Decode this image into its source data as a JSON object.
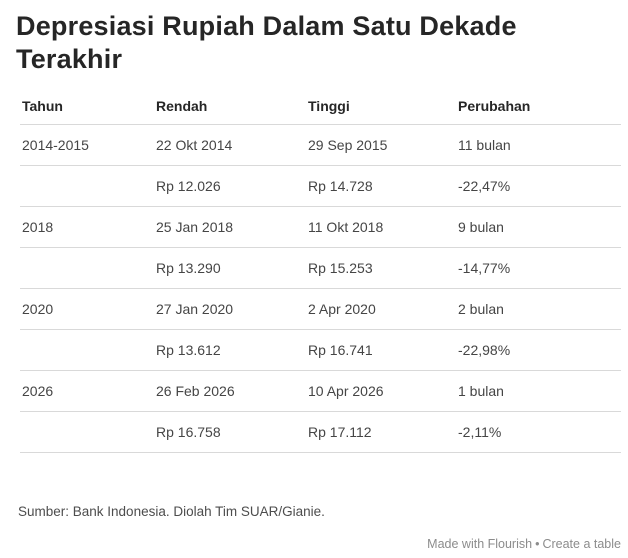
{
  "header": {
    "title": "Depresiasi Rupiah Dalam Satu Dekade Terakhir"
  },
  "chart_data": {
    "type": "table",
    "title": "Depresiasi Rupiah Dalam Satu Dekade Terakhir",
    "columns": [
      "Tahun",
      "Rendah",
      "Tinggi",
      "Perubahan"
    ],
    "rows": [
      {
        "tahun": "2014-2015",
        "rendah": "22 Okt 2014",
        "tinggi": "29 Sep 2015",
        "perubahan": "11 bulan"
      },
      {
        "tahun": "",
        "rendah": "Rp 12.026",
        "tinggi": "Rp 14.728",
        "perubahan": "-22,47%"
      },
      {
        "tahun": "2018",
        "rendah": "25 Jan 2018",
        "tinggi": "11 Okt 2018",
        "perubahan": "9 bulan"
      },
      {
        "tahun": "",
        "rendah": "Rp 13.290",
        "tinggi": "Rp 15.253",
        "perubahan": "-14,77%"
      },
      {
        "tahun": "2020",
        "rendah": "27 Jan 2020",
        "tinggi": "2 Apr 2020",
        "perubahan": "2 bulan"
      },
      {
        "tahun": "",
        "rendah": "Rp 13.612",
        "tinggi": "Rp 16.741",
        "perubahan": "-22,98%"
      },
      {
        "tahun": "2026",
        "rendah": "26 Feb 2026",
        "tinggi": "10 Apr 2026",
        "perubahan": "1 bulan"
      },
      {
        "tahun": "",
        "rendah": "Rp 16.758",
        "tinggi": "Rp 17.112",
        "perubahan": "-2,11%"
      }
    ]
  },
  "footer": {
    "source": "Sumber: Bank Indonesia. Diolah Tim SUAR/Gianie.",
    "credit_made_with": "Made with Flourish",
    "credit_separator": "•",
    "credit_create": "Create a table"
  },
  "colors": {
    "title_text": "#262626",
    "body_text": "#454545",
    "divider": "#d9d9d9",
    "credit_text": "#8c8c8c",
    "background": "#ffffff"
  }
}
